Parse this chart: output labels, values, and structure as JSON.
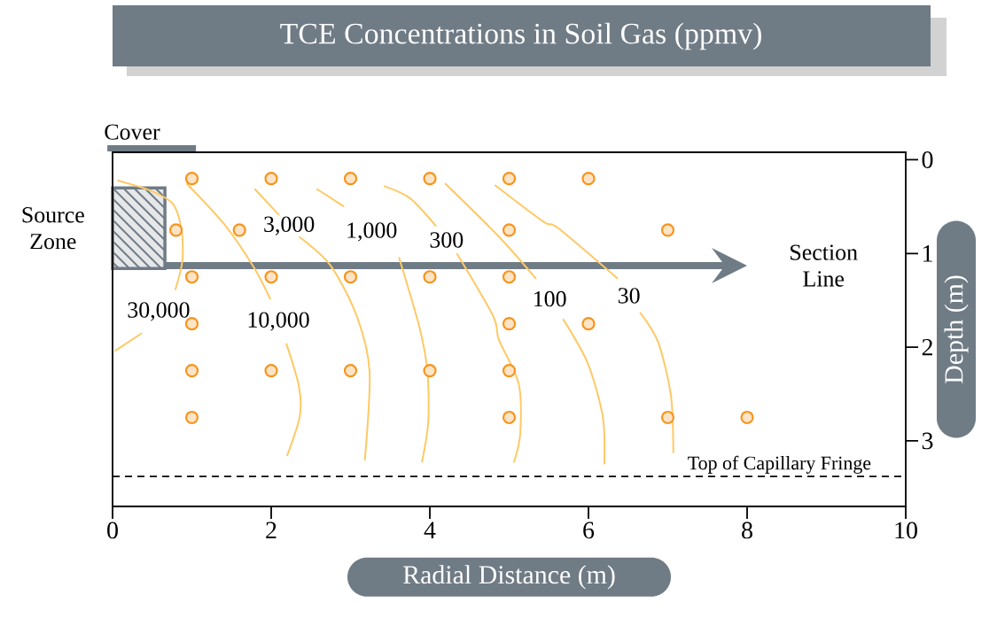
{
  "chart_data": {
    "type": "scatter",
    "title": "TCE Concentrations in Soil Gas (ppmv)",
    "xlabel": "Radial Distance (m)",
    "ylabel": "Depth (m)",
    "xlim": [
      0,
      10
    ],
    "xticks": [
      0,
      2,
      4,
      6,
      8,
      10
    ],
    "ylim": [
      3.7,
      -0.08
    ],
    "yticks": [
      0,
      1,
      2,
      3
    ],
    "grid": false,
    "annotations": [
      "Cover",
      "Section Line"
    ],
    "bands": [
      {
        "axis": "x",
        "from": 0,
        "to": 0.66,
        "label": "Source Zone",
        "color": "#e5e7e9"
      }
    ],
    "ref_lines": [
      {
        "axis": "y",
        "value": 3.38,
        "label": "Top of Capillary Fringe",
        "color": "#000000",
        "line_style": "dashed"
      }
    ],
    "series": [
      {
        "marker": "circle",
        "color": "#f7941d",
        "x": [
          1,
          2,
          3,
          4,
          5,
          6,
          0.8,
          1.6,
          5,
          7,
          1,
          2,
          3,
          4,
          5,
          1,
          5,
          6,
          1,
          2,
          3,
          4,
          5,
          1,
          5,
          7,
          8
        ],
        "values": [
          0.2,
          0.2,
          0.2,
          0.2,
          0.2,
          0.2,
          0.75,
          0.75,
          0.75,
          0.75,
          1.25,
          1.25,
          1.25,
          1.25,
          1.25,
          1.75,
          1.75,
          1.75,
          2.25,
          2.25,
          2.25,
          2.25,
          2.25,
          2.75,
          2.75,
          2.75,
          2.75
        ]
      },
      {
        "type": "line",
        "name": "30,000",
        "color": "#fec965",
        "x": [
          0.06,
          0.48,
          0.76,
          0.87,
          0.88,
          0.79,
          null,
          0.37,
          0.03
        ],
        "values": [
          0.22,
          0.33,
          0.47,
          0.75,
          1.08,
          1.39,
          null,
          1.85,
          2.04
        ]
      },
      {
        "type": "line",
        "name": "10,000",
        "color": "#fec965",
        "x": [
          0.93,
          1.41,
          1.79,
          1.99,
          null,
          2.19,
          2.35,
          2.36,
          2.2
        ],
        "values": [
          0.25,
          0.69,
          1.16,
          1.49,
          null,
          1.96,
          2.42,
          2.74,
          3.16
        ]
      },
      {
        "type": "line",
        "name": "3,000",
        "color": "#fec965",
        "x": [
          1.79,
          2.1,
          null,
          2.35,
          2.75,
          3.08,
          3.24,
          3.18
        ],
        "values": [
          0.31,
          0.59,
          null,
          0.82,
          1.13,
          1.67,
          2.26,
          3.21
        ]
      },
      {
        "type": "line",
        "name": "1,000",
        "color": "#fec965",
        "x": [
          2.57,
          2.92,
          null,
          3.61,
          3.87,
          3.97,
          3.98,
          3.9
        ],
        "values": [
          0.31,
          0.5,
          null,
          1.04,
          1.79,
          2.26,
          2.8,
          3.23
        ]
      },
      {
        "type": "line",
        "name": "300",
        "color": "#fec965",
        "x": [
          3.42,
          3.75,
          4.08,
          null,
          4.34,
          4.8,
          4.87,
          5.12,
          5.14,
          5.06
        ],
        "values": [
          0.28,
          0.41,
          0.71,
          null,
          1.0,
          1.67,
          1.92,
          2.39,
          2.92,
          3.23
        ]
      },
      {
        "type": "line",
        "name": "100",
        "color": "#fec965",
        "x": [
          4.19,
          4.87,
          5.34,
          null,
          5.68,
          5.99,
          6.18,
          6.2
        ],
        "values": [
          0.25,
          0.82,
          1.27,
          null,
          1.7,
          2.17,
          2.74,
          3.25
        ]
      },
      {
        "type": "line",
        "name": "30",
        "color": "#fec965",
        "x": [
          4.82,
          5.43,
          5.62,
          6.37,
          null,
          6.65,
          6.88,
          7.04,
          7.07
        ],
        "values": [
          0.27,
          0.66,
          0.73,
          1.27,
          null,
          1.63,
          1.95,
          2.52,
          3.13
        ]
      }
    ]
  }
}
